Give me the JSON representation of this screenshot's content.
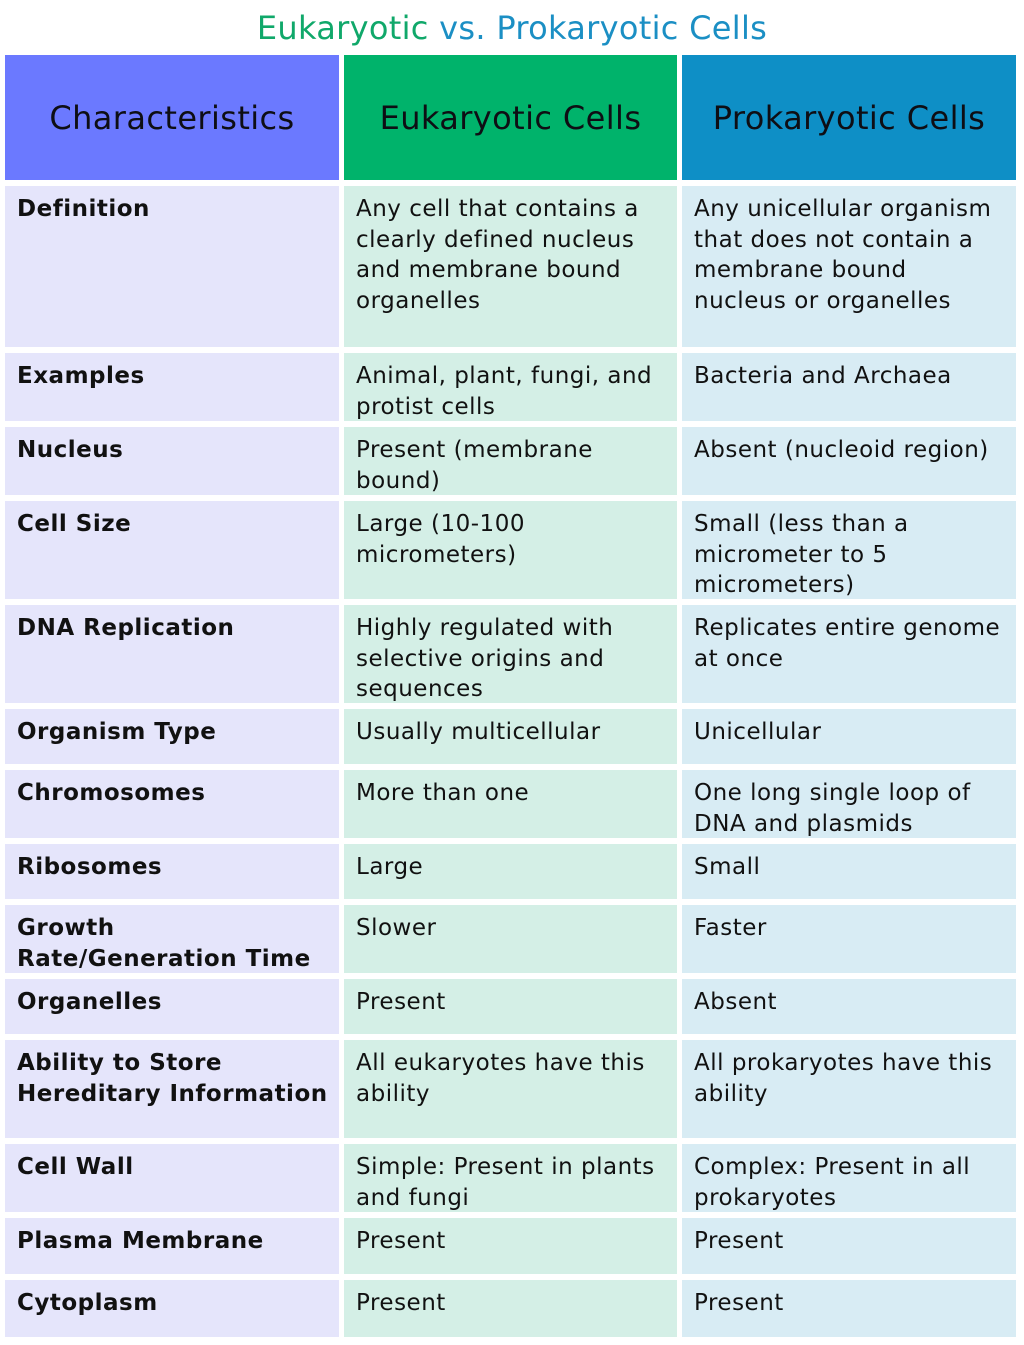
{
  "title": {
    "part1": "Eukaryotic",
    "part2": "vs.",
    "part3": "Prokaryotic Cells"
  },
  "headers": [
    "Characteristics",
    "Eukaryotic Cells",
    "Prokaryotic Cells"
  ],
  "rows": [
    {
      "characteristic": "Definition",
      "eukaryotic": "Any cell that contains a clearly defined nucleus and membrane bound organelles",
      "prokaryotic": "Any unicellular organism that does not contain a membrane bound nucleus or organelles"
    },
    {
      "characteristic": "Examples",
      "eukaryotic": "Animal, plant, fungi, and protist cells",
      "prokaryotic": "Bacteria and Archaea"
    },
    {
      "characteristic": "Nucleus",
      "eukaryotic": "Present (membrane bound)",
      "prokaryotic": "Absent (nucleoid region)"
    },
    {
      "characteristic": "Cell Size",
      "eukaryotic": "Large (10-100 micrometers)",
      "prokaryotic": "Small (less than a micrometer to 5 micrometers)"
    },
    {
      "characteristic": "DNA Replication",
      "eukaryotic": "Highly regulated with selective origins and sequences",
      "prokaryotic": "Replicates entire genome at once"
    },
    {
      "characteristic": "Organism Type",
      "eukaryotic": "Usually multicellular",
      "prokaryotic": "Unicellular"
    },
    {
      "characteristic": "Chromosomes",
      "eukaryotic": "More than one",
      "prokaryotic": "One long single loop of DNA and plasmids"
    },
    {
      "characteristic": "Ribosomes",
      "eukaryotic": "Large",
      "prokaryotic": "Small"
    },
    {
      "characteristic": "Growth Rate/Generation Time",
      "eukaryotic": "Slower",
      "prokaryotic": "Faster"
    },
    {
      "characteristic": "Organelles",
      "eukaryotic": "Present",
      "prokaryotic": "Absent"
    },
    {
      "characteristic": "Ability to Store Hereditary Information",
      "eukaryotic": "All eukaryotes have this ability",
      "prokaryotic": "All prokaryotes have this ability"
    },
    {
      "characteristic": "Cell Wall",
      "eukaryotic": "Simple: Present in plants and fungi",
      "prokaryotic": "Complex: Present in all prokaryotes"
    },
    {
      "characteristic": "Plasma Membrane",
      "eukaryotic": "Present",
      "prokaryotic": "Present"
    },
    {
      "characteristic": "Cytoplasm",
      "eukaryotic": "Present",
      "prokaryotic": "Present"
    }
  ],
  "colors": {
    "title_green": "#10a86a",
    "title_blue": "#1b8fc4",
    "header_characteristics": "#6b79ff",
    "header_eukaryotic": "#00b36b",
    "header_prokaryotic": "#0e8fc6",
    "col_characteristics": "#e5e5fb",
    "col_eukaryotic": "#d4efe6",
    "col_prokaryotic": "#d8ecf4"
  }
}
